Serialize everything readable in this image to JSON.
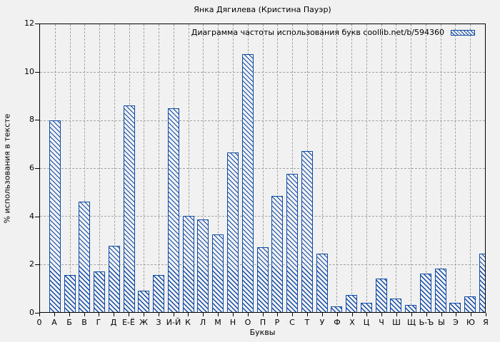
{
  "title": "Янка Дягилева (Кристина Пауэр)",
  "legend": {
    "label": "Диаграмма частоты использования букв coollib.net/b/594360"
  },
  "axes": {
    "y_label": "% использования в тексте",
    "x_label": "Буквы",
    "y_ticks": [
      0,
      2,
      4,
      6,
      8,
      10,
      12
    ],
    "x_origin_label": "0"
  },
  "colors": {
    "bar": "#0e4aa7",
    "grid": "#a3a3a3",
    "background": "#f1f1f1",
    "axis": "#000000"
  },
  "chart_data": {
    "type": "bar",
    "title": "Янка Дягилева (Кристина Пауэр)",
    "xlabel": "Буквы",
    "ylabel": "% использования в тексте",
    "ylim": [
      0,
      12
    ],
    "grid": true,
    "legend_label": "Диаграмма частоты использования букв coollib.net/b/594360",
    "legend_position": "top-right",
    "bar_style": "blue outline with diagonal hatch",
    "categories": [
      "А",
      "Б",
      "В",
      "Г",
      "Д",
      "Е-Ё",
      "Ж",
      "З",
      "И-Й",
      "К",
      "Л",
      "М",
      "Н",
      "О",
      "П",
      "Р",
      "С",
      "Т",
      "У",
      "Ф",
      "Х",
      "Ц",
      "Ч",
      "Ш",
      "Щ",
      "Ь-Ъ",
      "Ы",
      "Э",
      "Ю",
      "Я"
    ],
    "values": [
      8.0,
      1.55,
      4.6,
      1.7,
      2.75,
      8.6,
      0.9,
      1.55,
      8.5,
      4.0,
      3.85,
      3.25,
      6.65,
      10.75,
      2.7,
      4.85,
      5.75,
      6.7,
      2.45,
      0.25,
      0.7,
      0.4,
      1.4,
      0.55,
      0.3,
      1.6,
      1.8,
      0.4,
      0.65,
      2.45
    ]
  }
}
